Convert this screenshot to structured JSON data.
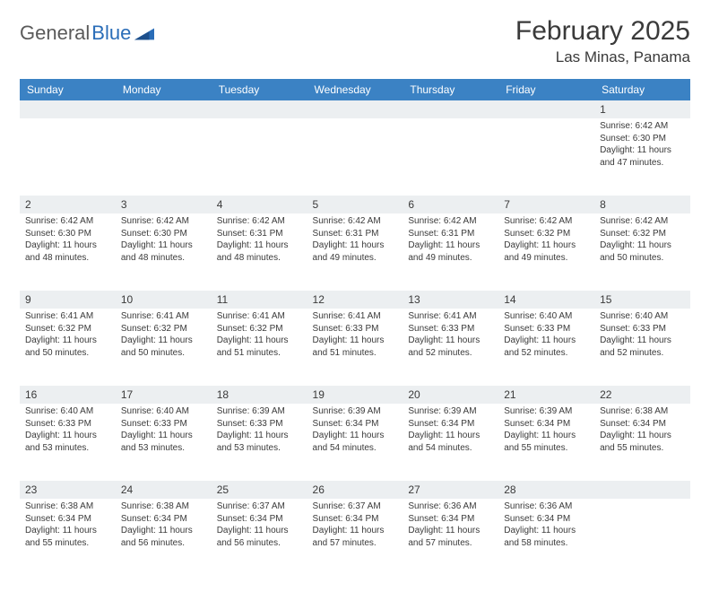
{
  "brand": {
    "name1": "General",
    "name2": "Blue"
  },
  "title": "February 2025",
  "location": "Las Minas, Panama",
  "colors": {
    "header_bg": "#3b82c4",
    "header_fg": "#ffffff",
    "daynum_bg": "#eceff1",
    "text": "#3a3a3a",
    "logo_gray": "#5a5a5a",
    "logo_blue": "#2a6db8"
  },
  "days_of_week": [
    "Sunday",
    "Monday",
    "Tuesday",
    "Wednesday",
    "Thursday",
    "Friday",
    "Saturday"
  ],
  "weeks": [
    [
      null,
      null,
      null,
      null,
      null,
      null,
      {
        "n": "1",
        "sr": "6:42 AM",
        "ss": "6:30 PM",
        "dl": "11 hours and 47 minutes."
      }
    ],
    [
      {
        "n": "2",
        "sr": "6:42 AM",
        "ss": "6:30 PM",
        "dl": "11 hours and 48 minutes."
      },
      {
        "n": "3",
        "sr": "6:42 AM",
        "ss": "6:30 PM",
        "dl": "11 hours and 48 minutes."
      },
      {
        "n": "4",
        "sr": "6:42 AM",
        "ss": "6:31 PM",
        "dl": "11 hours and 48 minutes."
      },
      {
        "n": "5",
        "sr": "6:42 AM",
        "ss": "6:31 PM",
        "dl": "11 hours and 49 minutes."
      },
      {
        "n": "6",
        "sr": "6:42 AM",
        "ss": "6:31 PM",
        "dl": "11 hours and 49 minutes."
      },
      {
        "n": "7",
        "sr": "6:42 AM",
        "ss": "6:32 PM",
        "dl": "11 hours and 49 minutes."
      },
      {
        "n": "8",
        "sr": "6:42 AM",
        "ss": "6:32 PM",
        "dl": "11 hours and 50 minutes."
      }
    ],
    [
      {
        "n": "9",
        "sr": "6:41 AM",
        "ss": "6:32 PM",
        "dl": "11 hours and 50 minutes."
      },
      {
        "n": "10",
        "sr": "6:41 AM",
        "ss": "6:32 PM",
        "dl": "11 hours and 50 minutes."
      },
      {
        "n": "11",
        "sr": "6:41 AM",
        "ss": "6:32 PM",
        "dl": "11 hours and 51 minutes."
      },
      {
        "n": "12",
        "sr": "6:41 AM",
        "ss": "6:33 PM",
        "dl": "11 hours and 51 minutes."
      },
      {
        "n": "13",
        "sr": "6:41 AM",
        "ss": "6:33 PM",
        "dl": "11 hours and 52 minutes."
      },
      {
        "n": "14",
        "sr": "6:40 AM",
        "ss": "6:33 PM",
        "dl": "11 hours and 52 minutes."
      },
      {
        "n": "15",
        "sr": "6:40 AM",
        "ss": "6:33 PM",
        "dl": "11 hours and 52 minutes."
      }
    ],
    [
      {
        "n": "16",
        "sr": "6:40 AM",
        "ss": "6:33 PM",
        "dl": "11 hours and 53 minutes."
      },
      {
        "n": "17",
        "sr": "6:40 AM",
        "ss": "6:33 PM",
        "dl": "11 hours and 53 minutes."
      },
      {
        "n": "18",
        "sr": "6:39 AM",
        "ss": "6:33 PM",
        "dl": "11 hours and 53 minutes."
      },
      {
        "n": "19",
        "sr": "6:39 AM",
        "ss": "6:34 PM",
        "dl": "11 hours and 54 minutes."
      },
      {
        "n": "20",
        "sr": "6:39 AM",
        "ss": "6:34 PM",
        "dl": "11 hours and 54 minutes."
      },
      {
        "n": "21",
        "sr": "6:39 AM",
        "ss": "6:34 PM",
        "dl": "11 hours and 55 minutes."
      },
      {
        "n": "22",
        "sr": "6:38 AM",
        "ss": "6:34 PM",
        "dl": "11 hours and 55 minutes."
      }
    ],
    [
      {
        "n": "23",
        "sr": "6:38 AM",
        "ss": "6:34 PM",
        "dl": "11 hours and 55 minutes."
      },
      {
        "n": "24",
        "sr": "6:38 AM",
        "ss": "6:34 PM",
        "dl": "11 hours and 56 minutes."
      },
      {
        "n": "25",
        "sr": "6:37 AM",
        "ss": "6:34 PM",
        "dl": "11 hours and 56 minutes."
      },
      {
        "n": "26",
        "sr": "6:37 AM",
        "ss": "6:34 PM",
        "dl": "11 hours and 57 minutes."
      },
      {
        "n": "27",
        "sr": "6:36 AM",
        "ss": "6:34 PM",
        "dl": "11 hours and 57 minutes."
      },
      {
        "n": "28",
        "sr": "6:36 AM",
        "ss": "6:34 PM",
        "dl": "11 hours and 58 minutes."
      },
      null
    ]
  ],
  "labels": {
    "sunrise": "Sunrise:",
    "sunset": "Sunset:",
    "daylight": "Daylight:"
  }
}
